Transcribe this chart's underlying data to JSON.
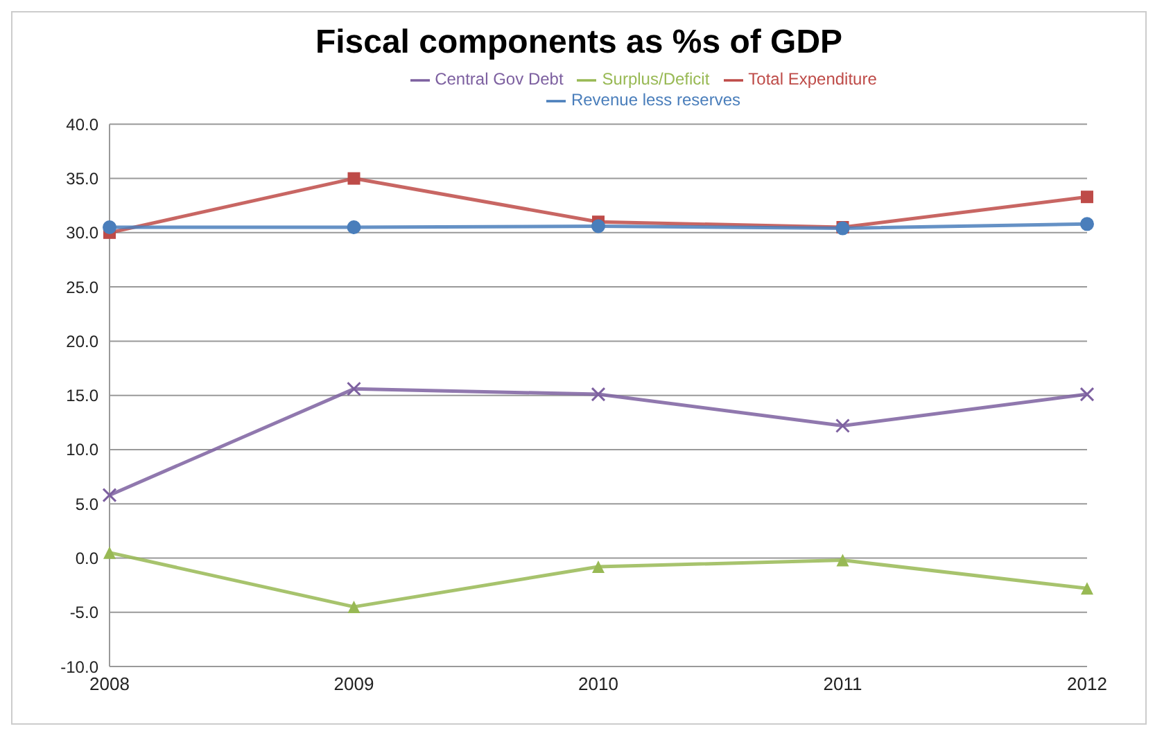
{
  "chart_data": {
    "type": "line",
    "title": "Fiscal components as %s of GDP",
    "categories": [
      "2008",
      "2009",
      "2010",
      "2011",
      "2012"
    ],
    "series": [
      {
        "name": "Revenue less reserves",
        "color": "#4a7ebb",
        "marker": "circle",
        "values": [
          30.5,
          30.5,
          30.6,
          30.4,
          30.8
        ]
      },
      {
        "name": "Total Expenditure",
        "color": "#be4b48",
        "marker": "square",
        "values": [
          30.0,
          35.0,
          31.0,
          30.5,
          33.3
        ]
      },
      {
        "name": "Surplus/Deficit",
        "color": "#98b954",
        "marker": "triangle",
        "values": [
          0.5,
          -4.5,
          -0.8,
          -0.2,
          -2.8
        ]
      },
      {
        "name": "Central Gov Debt",
        "color": "#7d60a0",
        "marker": "cross",
        "values": [
          5.8,
          15.6,
          15.1,
          12.2,
          15.1
        ]
      }
    ],
    "ylim": [
      -10,
      40
    ],
    "yticks": [
      {
        "value": -10,
        "label": "-10.0"
      },
      {
        "value": -5,
        "label": "-5.0"
      },
      {
        "value": 0,
        "label": "0.0"
      },
      {
        "value": 5,
        "label": "5.0"
      },
      {
        "value": 10,
        "label": "10.0"
      },
      {
        "value": 15,
        "label": "15.0"
      },
      {
        "value": 20,
        "label": "20.0"
      },
      {
        "value": 25,
        "label": "25.0"
      },
      {
        "value": 30,
        "label": "30.0"
      },
      {
        "value": 35,
        "label": "35.0"
      },
      {
        "value": 40,
        "label": "40.0"
      }
    ],
    "grid": "y",
    "legend": "top"
  }
}
